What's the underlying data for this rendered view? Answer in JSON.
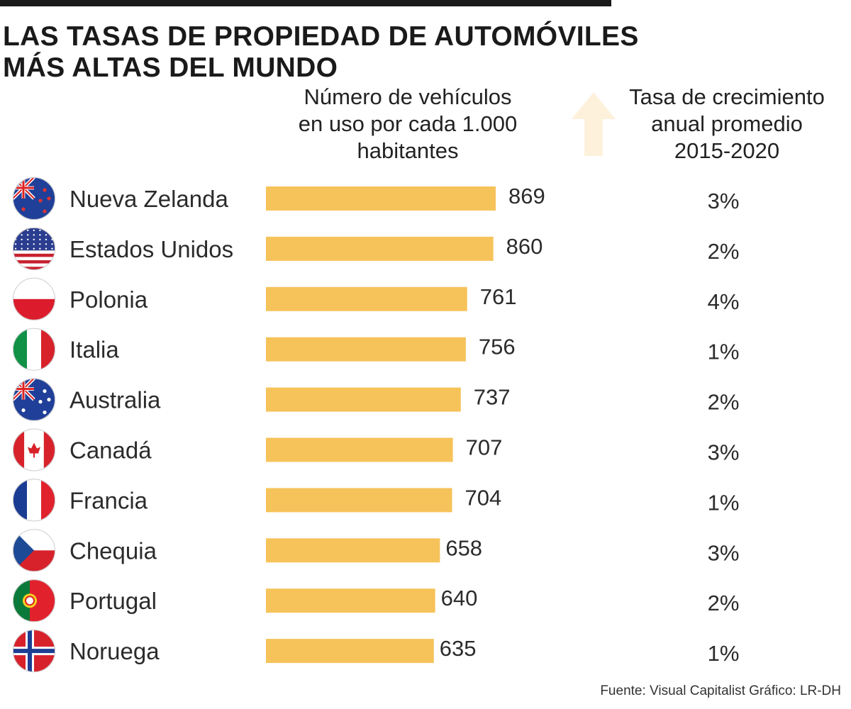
{
  "title_lines": [
    "LAS TASAS DE PROPIEDAD DE AUTOMÓVILES",
    "MÁS ALTAS DEL MUNDO"
  ],
  "source": "Fuente: Visual Capitalist   Gráfico: LR-DH",
  "colors": {
    "bar": "#F6C35A",
    "arrow": "#FDF1DC",
    "text": "#2b2b2b"
  },
  "chart_data": {
    "type": "bar",
    "orientation": "horizontal",
    "value_header": [
      "Número de vehículos",
      "en uso por cada 1.000",
      "habitantes"
    ],
    "growth_header": [
      "Tasa de crecimiento",
      "anual promedio",
      "2015-2020"
    ],
    "categories": [
      "Nueva Zelanda",
      "Estados Unidos",
      "Polonia",
      "Italia",
      "Australia",
      "Canadá",
      "Francia",
      "Chequia",
      "Portugal",
      "Noruega"
    ],
    "flags": [
      "nz-flag-icon",
      "us-flag-icon",
      "pl-flag-icon",
      "it-flag-icon",
      "au-flag-icon",
      "ca-flag-icon",
      "fr-flag-icon",
      "cz-flag-icon",
      "pt-flag-icon",
      "no-flag-icon"
    ],
    "values": [
      869,
      860,
      761,
      756,
      737,
      707,
      704,
      658,
      640,
      635
    ],
    "growth": [
      "3%",
      "2%",
      "4%",
      "1%",
      "2%",
      "3%",
      "1%",
      "3%",
      "2%",
      "1%"
    ],
    "xlim": [
      0,
      869
    ]
  }
}
